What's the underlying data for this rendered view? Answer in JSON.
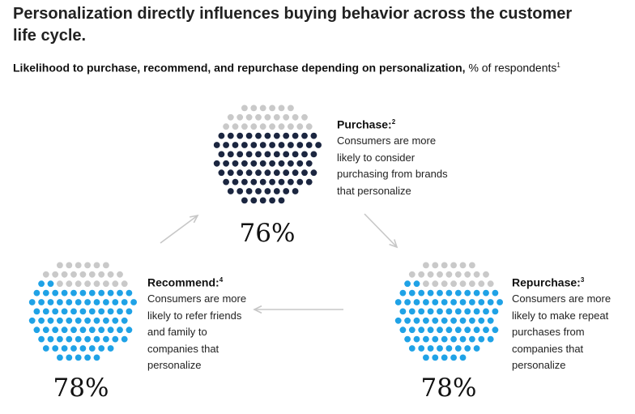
{
  "title": "Personalization directly influences buying behavior across the customer life cycle.",
  "subtitle_bold": "Likelihood to purchase, recommend, and repurchase depending on personalization,",
  "subtitle_unit": "% of respondents",
  "subtitle_note": "1",
  "colors": {
    "grey": "#c9c9c9",
    "navy": "#1b2640",
    "blue": "#1fa2e6",
    "arrow": "#c7c7c7"
  },
  "stages": [
    {
      "label": "Purchase:",
      "note": "2",
      "pct": "76%",
      "value": 76,
      "text": [
        "Consumers are more",
        "likely to consider",
        "purchasing from brands",
        "that personalize"
      ]
    },
    {
      "label": "Repurchase:",
      "note": "3",
      "pct": "78%",
      "value": 78,
      "text": [
        "Consumers are more",
        "likely to make repeat",
        "purchases from",
        "companies that",
        "personalize"
      ]
    },
    {
      "label": "Recommend:",
      "note": "4",
      "pct": "78%",
      "value": 78,
      "text": [
        "Consumers are more",
        "likely to refer friends",
        "and family to",
        "companies that",
        "personalize"
      ]
    }
  ],
  "chart_data": {
    "type": "dot-matrix",
    "title": "Personalization directly influences buying behavior across the customer life cycle.",
    "unit": "% of respondents",
    "categories": [
      "Purchase",
      "Repurchase",
      "Recommend"
    ],
    "values": [
      76,
      78,
      78
    ]
  }
}
